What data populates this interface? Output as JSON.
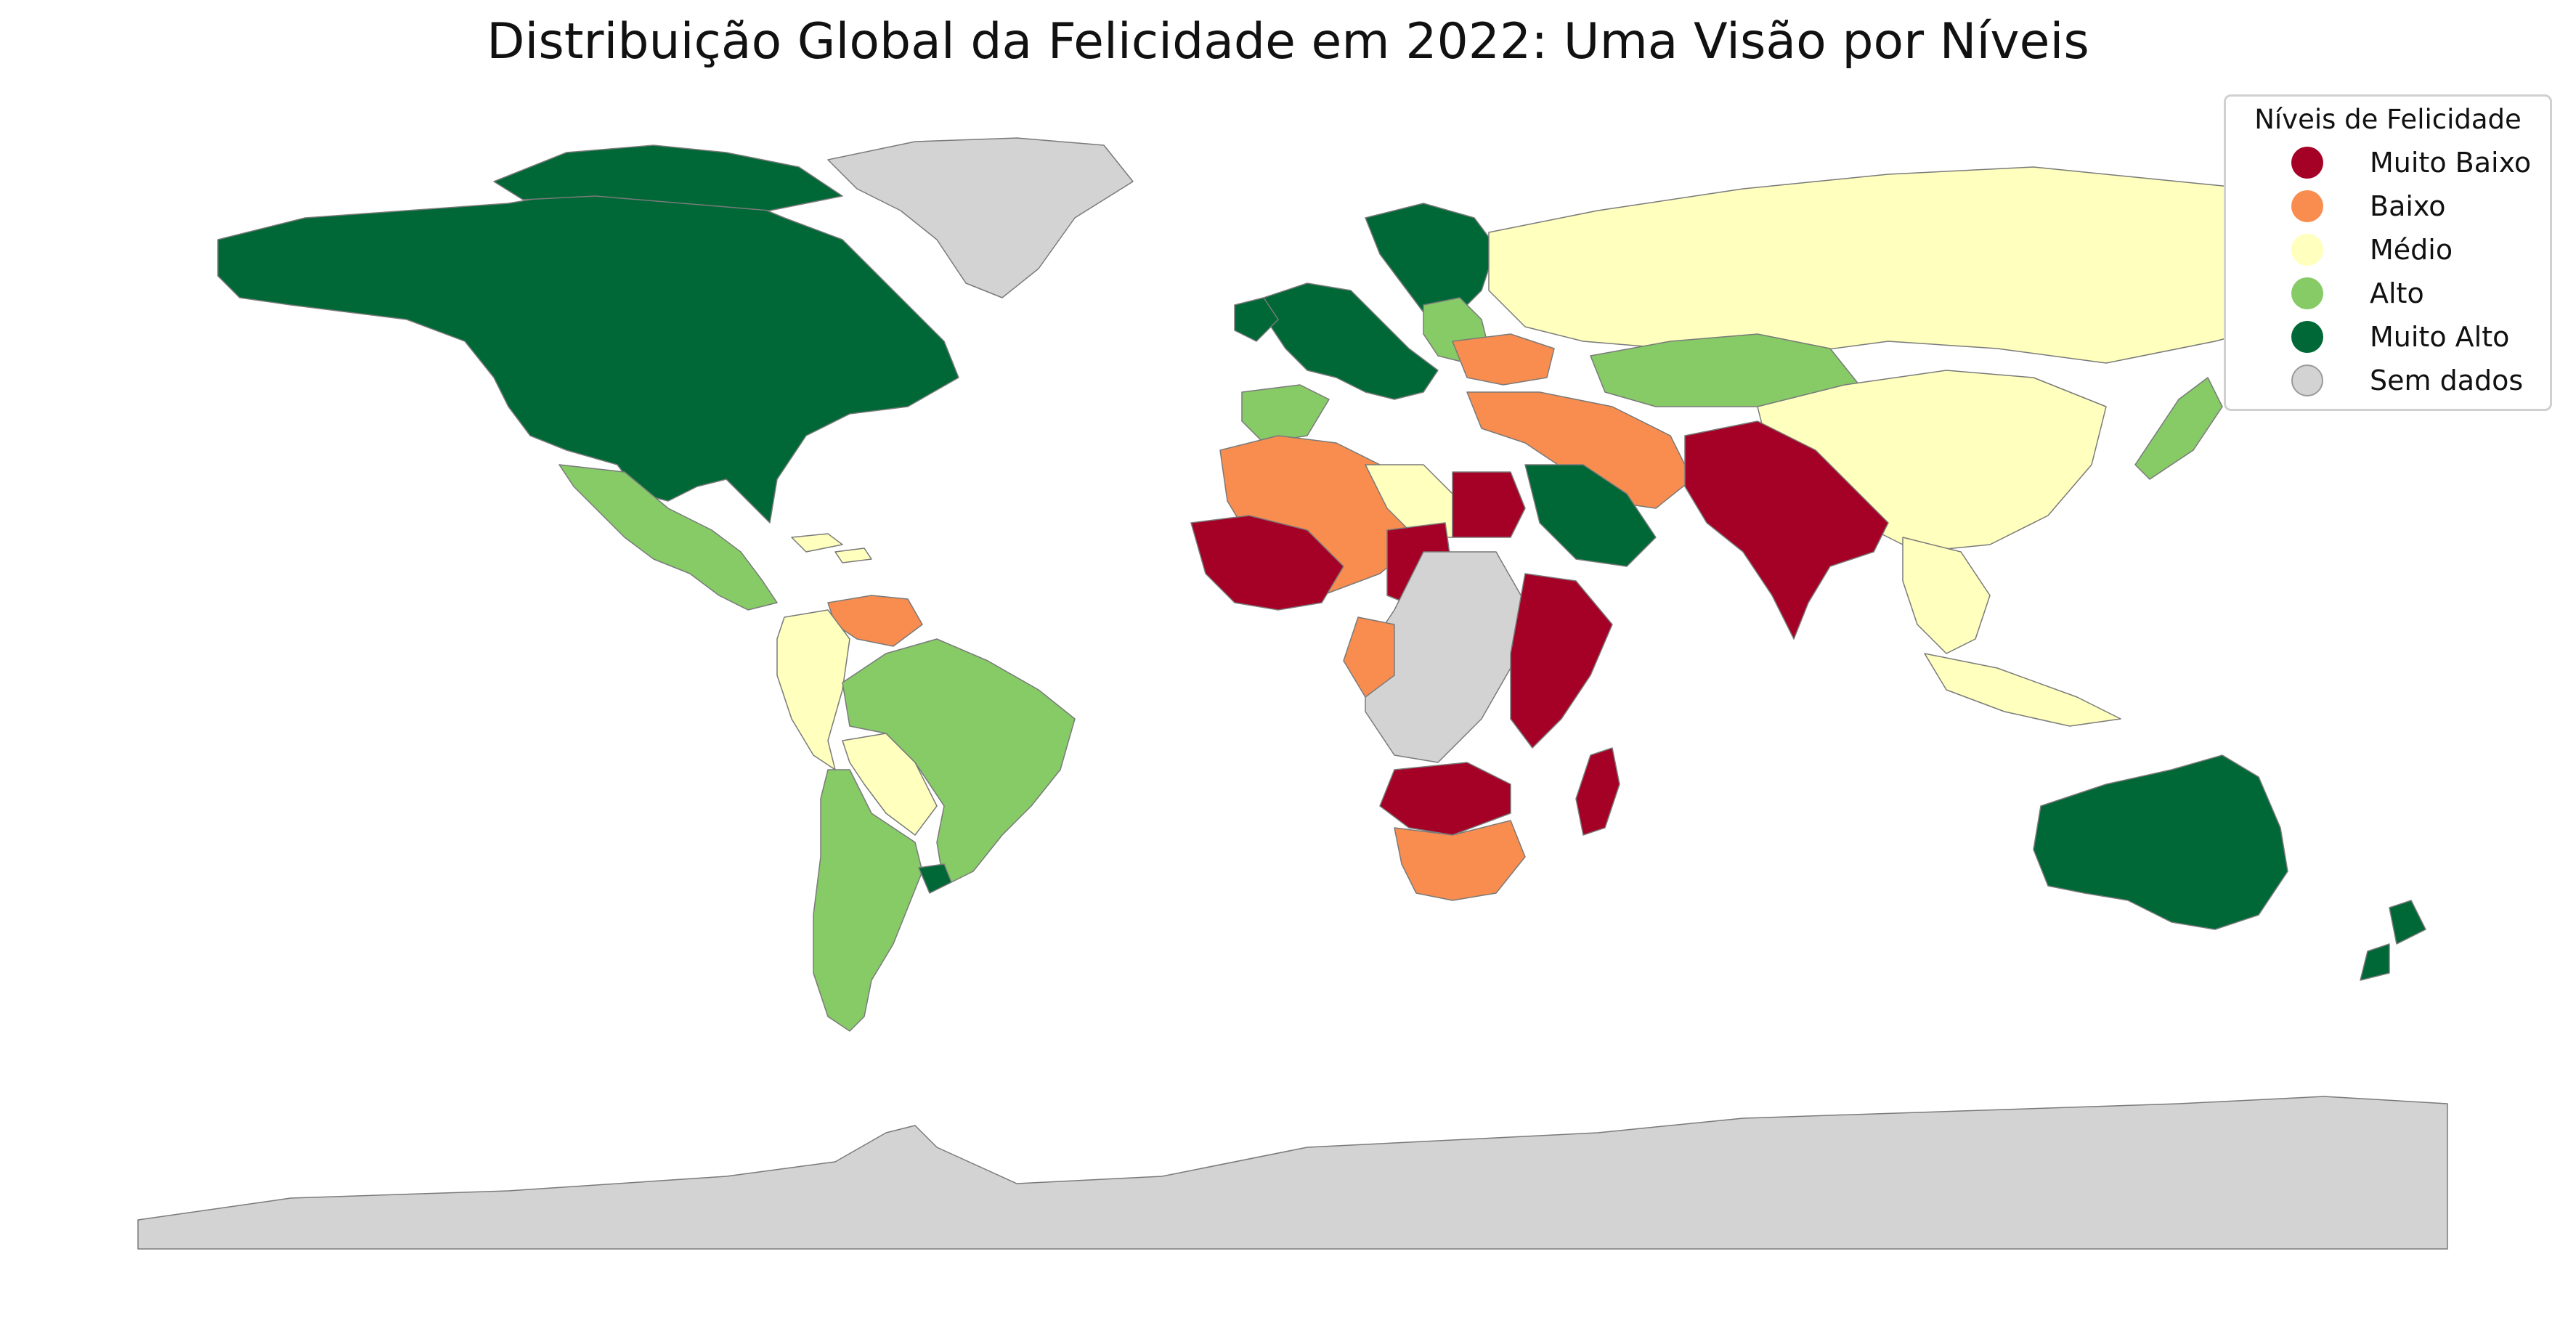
{
  "title": "Distribuição Global da Felicidade em 2022: Uma Visão por Níveis",
  "legend": {
    "title": "Níveis de Felicidade",
    "items": [
      {
        "label": "Muito Baixo",
        "color": "#a50026"
      },
      {
        "label": "Baixo",
        "color": "#f88d4f"
      },
      {
        "label": "Médio",
        "color": "#ffffbe"
      },
      {
        "label": "Alto",
        "color": "#86cb66"
      },
      {
        "label": "Muito Alto",
        "color": "#006837"
      },
      {
        "label": "Sem dados",
        "color": "#d3d3d3"
      }
    ]
  },
  "regions": [
    {
      "name": "North America",
      "level": "Muito Alto"
    },
    {
      "name": "Greenland",
      "level": "Sem dados"
    },
    {
      "name": "Mexico & Central America",
      "level": "Alto"
    },
    {
      "name": "Caribbean",
      "level": "Médio"
    },
    {
      "name": "Venezuela",
      "level": "Baixo"
    },
    {
      "name": "Colombia / Peru / Ecuador",
      "level": "Médio"
    },
    {
      "name": "Bolivia / Paraguay",
      "level": "Médio"
    },
    {
      "name": "Brazil",
      "level": "Alto"
    },
    {
      "name": "Argentina / Chile",
      "level": "Alto"
    },
    {
      "name": "Uruguay",
      "level": "Muito Alto"
    },
    {
      "name": "Western Europe",
      "level": "Muito Alto"
    },
    {
      "name": "Iberia",
      "level": "Alto"
    },
    {
      "name": "Eastern Europe",
      "level": "Alto"
    },
    {
      "name": "Ukraine / Balkans",
      "level": "Baixo"
    },
    {
      "name": "Russia",
      "level": "Médio"
    },
    {
      "name": "Kazakhstan",
      "level": "Alto"
    },
    {
      "name": "China",
      "level": "Médio"
    },
    {
      "name": "Japan / Korea",
      "level": "Alto"
    },
    {
      "name": "Turkey / Iran",
      "level": "Baixo"
    },
    {
      "name": "Saudi Arabia",
      "level": "Muito Alto"
    },
    {
      "name": "South Asia",
      "level": "Muito Baixo"
    },
    {
      "name": "Southeast Asia",
      "level": "Médio"
    },
    {
      "name": "North Africa",
      "level": "Baixo"
    },
    {
      "name": "Libya",
      "level": "Médio"
    },
    {
      "name": "Egypt",
      "level": "Muito Baixo"
    },
    {
      "name": "Sahel West Africa",
      "level": "Muito Baixo"
    },
    {
      "name": "Central Africa",
      "level": "Sem dados"
    },
    {
      "name": "East Africa",
      "level": "Muito Baixo"
    },
    {
      "name": "Southern Africa",
      "level": "Baixo"
    },
    {
      "name": "Madagascar",
      "level": "Muito Baixo"
    },
    {
      "name": "Australia",
      "level": "Muito Alto"
    },
    {
      "name": "New Zealand",
      "level": "Muito Alto"
    },
    {
      "name": "Antarctica",
      "level": "Sem dados"
    }
  ]
}
